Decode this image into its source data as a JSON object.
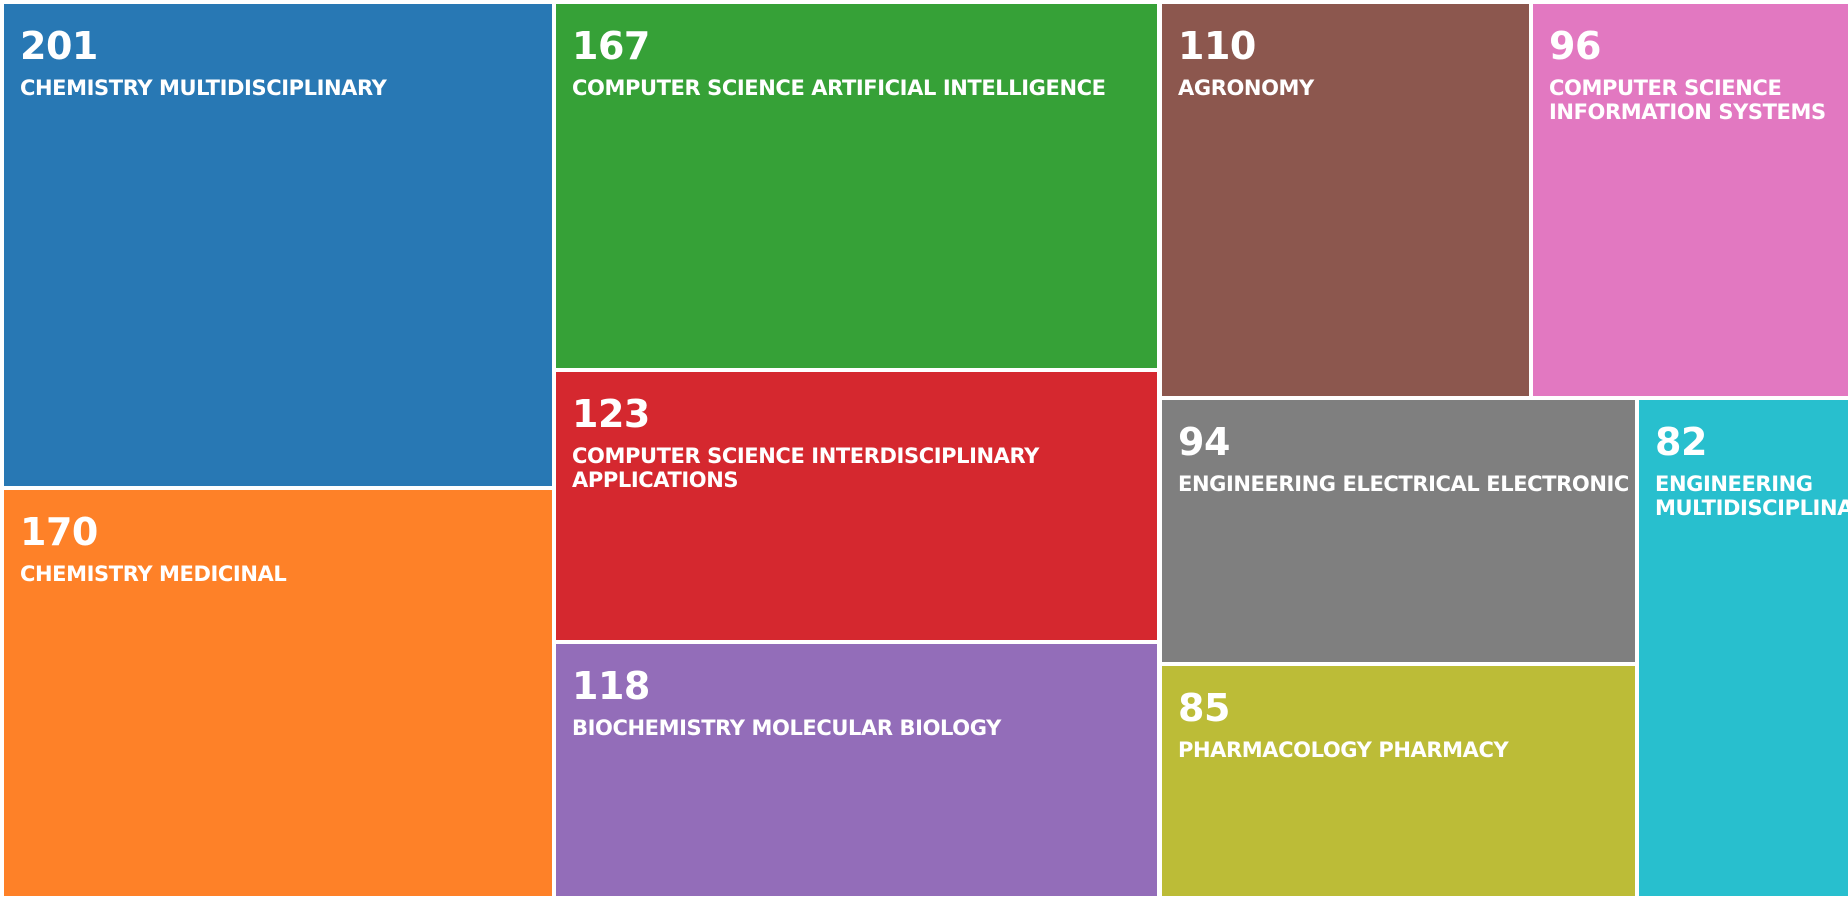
{
  "chart_data": {
    "type": "treemap",
    "items": [
      {
        "value": 201,
        "label": "CHEMISTRY MULTIDISCIPLINARY",
        "color": "#2878b4"
      },
      {
        "value": 170,
        "label": "CHEMISTRY MEDICINAL",
        "color": "#fe8128"
      },
      {
        "value": 167,
        "label": "COMPUTER SCIENCE ARTIFICIAL INTELLIGENCE",
        "color": "#36a137"
      },
      {
        "value": 123,
        "label": "COMPUTER SCIENCE INTERDISCIPLINARY\nAPPLICATIONS",
        "color": "#d5282f"
      },
      {
        "value": 118,
        "label": "BIOCHEMISTRY MOLECULAR BIOLOGY",
        "color": "#936db9"
      },
      {
        "value": 110,
        "label": "AGRONOMY",
        "color": "#8c574e"
      },
      {
        "value": 96,
        "label": "COMPUTER SCIENCE\nINFORMATION SYSTEMS",
        "color": "#e278c1"
      },
      {
        "value": 94,
        "label": "ENGINEERING ELECTRICAL ELECTRONIC",
        "color": "#7f7f7f"
      },
      {
        "value": 85,
        "label": "PHARMACOLOGY PHARMACY",
        "color": "#bcbc37"
      },
      {
        "value": 82,
        "label": "ENGINEERING\nMULTIDISCIPLINA",
        "color": "#28bfce"
      }
    ]
  }
}
